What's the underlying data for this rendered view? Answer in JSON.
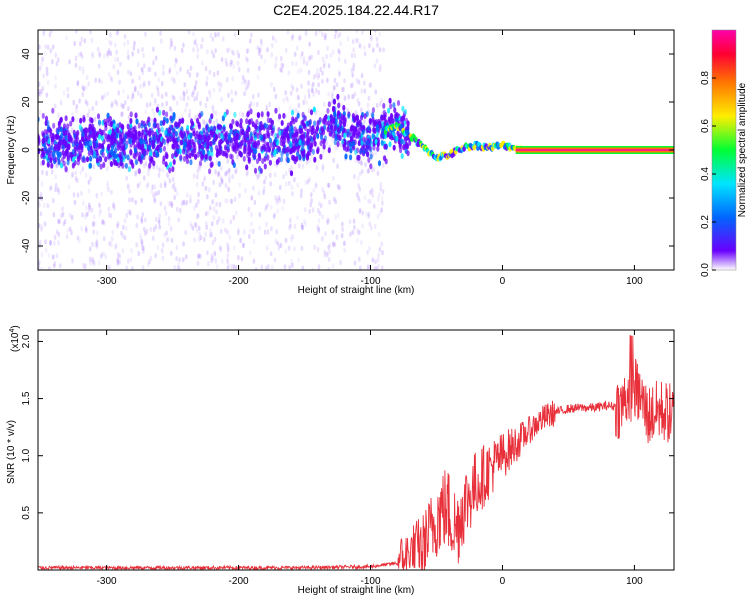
{
  "title": "C2E4.2025.184.22.44.R17",
  "chart_data": [
    {
      "type": "heatmap",
      "xlabel": "Height of straight line (km)",
      "ylabel": "Frequency (Hz)",
      "xlim": [
        -352,
        130
      ],
      "ylim": [
        -50,
        50
      ],
      "xticks": [
        -300,
        -200,
        -100,
        0,
        100
      ],
      "yticks": [
        -40,
        -20,
        0,
        20,
        40
      ],
      "colorbar": {
        "label": "Normalized spectral amplitude",
        "range": [
          0,
          1
        ],
        "ticks": [
          0.0,
          0.2,
          0.4,
          0.6,
          0.8
        ],
        "colormap": [
          "#ffffff",
          "#6a00ff",
          "#0066ff",
          "#00e5ff",
          "#00ff33",
          "#ffee00",
          "#ff7700",
          "#ff0033",
          "#ff00aa"
        ]
      },
      "ridge": {
        "x": [
          -350,
          -300,
          -250,
          -200,
          -150,
          -130,
          -100,
          -80,
          -70,
          -60,
          -50,
          -40,
          -30,
          -20,
          -10,
          0,
          10,
          50,
          95,
          130
        ],
        "frequency": [
          3,
          3,
          4,
          4,
          4,
          10,
          6,
          10,
          6,
          1,
          -3,
          -2,
          1,
          2,
          1,
          2,
          1,
          0,
          0,
          0
        ]
      }
    },
    {
      "type": "line",
      "xlabel": "Height of straight line (km)",
      "ylabel": "SNR (10 * v/v)",
      "y_scale_label": "(x10",
      "y_scale_exponent": "4",
      "xlim": [
        -352,
        130
      ],
      "ylim": [
        0,
        2.1
      ],
      "xticks": [
        -300,
        -200,
        -100,
        0,
        100
      ],
      "yticks": [
        0.5,
        1.0,
        1.5,
        2.0
      ],
      "line_color": "#e8303a",
      "series": [
        {
          "x": [
            -350,
            -300,
            -250,
            -200,
            -150,
            -100,
            -80,
            -60,
            -50,
            -45,
            -40,
            -35,
            -30,
            -20,
            -10,
            0,
            10,
            20,
            30,
            40,
            50,
            60,
            70,
            80,
            90,
            95,
            100,
            105,
            110,
            120,
            130
          ],
          "values": [
            0.02,
            0.02,
            0.02,
            0.02,
            0.02,
            0.03,
            0.06,
            0.2,
            0.45,
            0.55,
            0.5,
            0.35,
            0.55,
            0.75,
            0.88,
            1.0,
            1.1,
            1.22,
            1.32,
            1.38,
            1.41,
            1.42,
            1.42,
            1.44,
            1.42,
            1.55,
            1.6,
            1.5,
            1.35,
            1.4,
            1.35
          ]
        }
      ]
    }
  ]
}
